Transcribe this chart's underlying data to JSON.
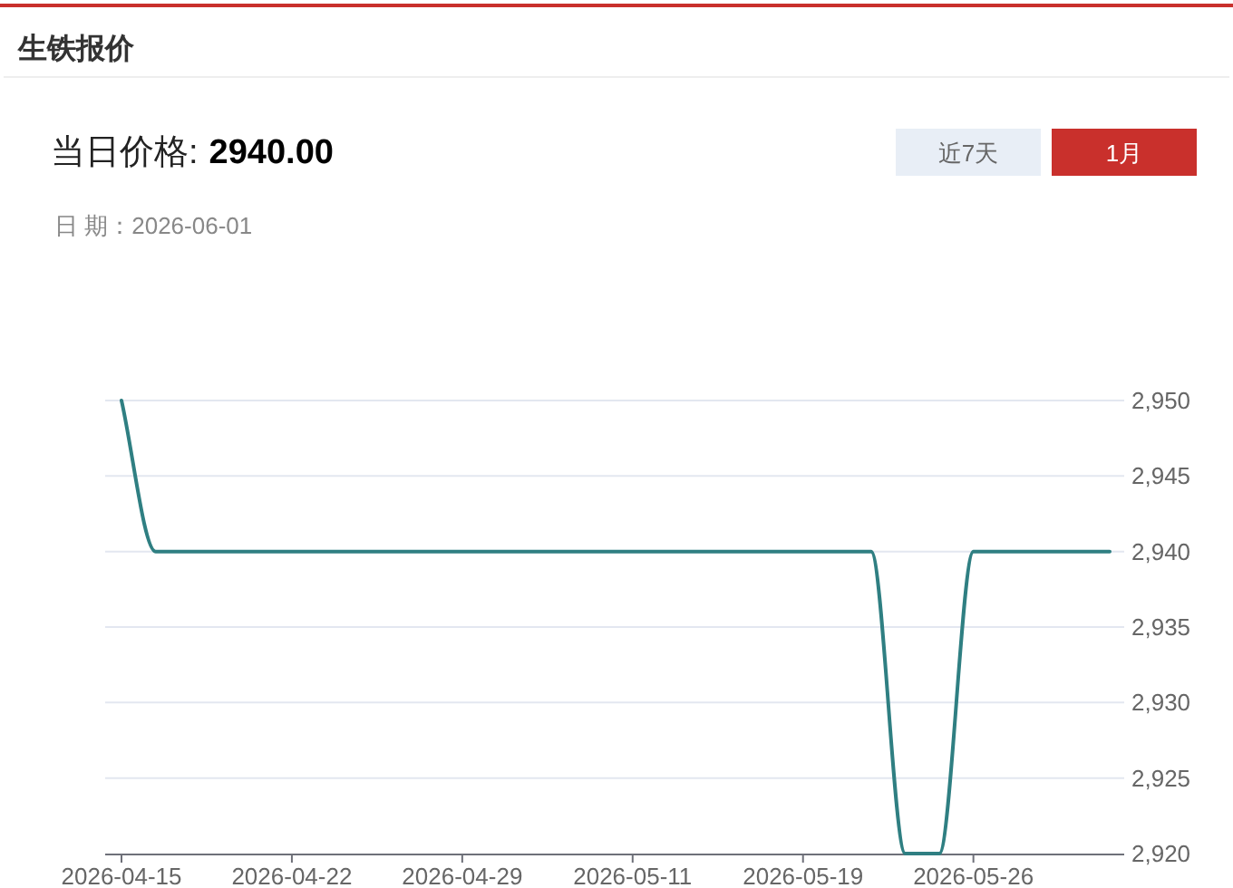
{
  "chart_data": {
    "type": "line",
    "title": "生铁报价",
    "annotations": [
      "当日价格:",
      "2940.00",
      "近7天",
      "1月",
      "日 期：2026-06-01"
    ],
    "categories": [
      "2026-04-15",
      null,
      null,
      null,
      null,
      "2026-04-22",
      null,
      null,
      null,
      null,
      "2026-04-29",
      null,
      null,
      null,
      null,
      "2026-05-11",
      null,
      null,
      null,
      null,
      "2026-05-19",
      null,
      null,
      null,
      null,
      "2026-05-26",
      null,
      null,
      null,
      null
    ],
    "series": [
      {
        "color": "#2f7f82",
        "values": [
          2950,
          2940,
          2940,
          2940,
          2940,
          2940,
          2940,
          2940,
          2940,
          2940,
          2940,
          2940,
          2940,
          2940,
          2940,
          2940,
          2940,
          2940,
          2940,
          2940,
          2940,
          2940,
          2940,
          2920,
          2920,
          2940,
          2940,
          2940,
          2940,
          2940
        ]
      }
    ],
    "ylim": [
      2920,
      2950
    ],
    "yticks": [
      {
        "value": 2920,
        "label": "2,920"
      },
      {
        "value": 2925,
        "label": "2,925"
      },
      {
        "value": 2930,
        "label": "2,930"
      },
      {
        "value": 2935,
        "label": "2,935"
      },
      {
        "value": 2940,
        "label": "2,940"
      },
      {
        "value": 2945,
        "label": "2,945"
      },
      {
        "value": 2950,
        "label": "2,950"
      }
    ],
    "grid": "y",
    "marker": "none",
    "line_style": "solid"
  }
}
